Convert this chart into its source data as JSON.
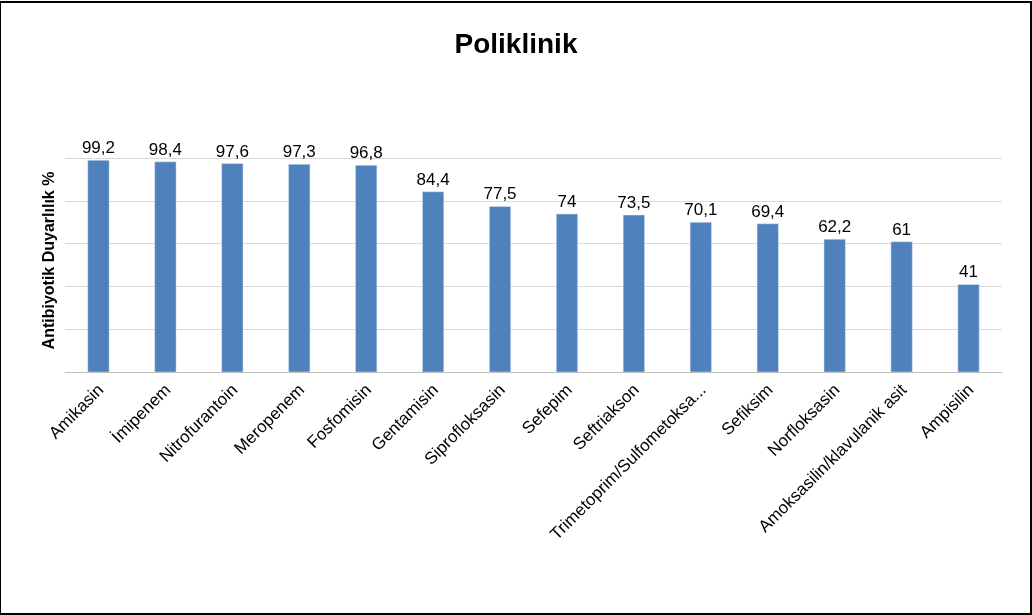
{
  "chart_data": {
    "type": "bar",
    "title": "Poliklinik",
    "ylabel": "Antibiyotik Duyarlılık %",
    "categories": [
      "Amikasin",
      "İmipenem",
      "Nitrofurantoin",
      "Meropenem",
      "Fosfomisin",
      "Gentamisin",
      "Siprofloksasin",
      "Sefepim",
      "Seftriakson",
      "Trimetoprim/Sulfometoksa...",
      "Sefiksim",
      "Norfloksasin",
      "Amoksasilin/klavulanik asit",
      "Ampisilin"
    ],
    "values": [
      99.2,
      98.4,
      97.6,
      97.3,
      96.8,
      84.4,
      77.5,
      74,
      73.5,
      70.1,
      69.4,
      62.2,
      61,
      41
    ],
    "value_labels": [
      "99,2",
      "98,4",
      "97,6",
      "97,3",
      "96,8",
      "84,4",
      "77,5",
      "74",
      "73,5",
      "70,1",
      "69,4",
      "62,2",
      "61",
      "41"
    ],
    "color": "#4f81bd",
    "yticks": [
      {
        "value": 0,
        "label": null
      },
      {
        "value": 20,
        "label": null
      },
      {
        "value": 40,
        "label": null
      },
      {
        "value": 60,
        "label": null
      },
      {
        "value": 80,
        "label": null
      },
      {
        "value": 100,
        "label": null
      }
    ],
    "grid": "y",
    "tick_labels": "x"
  }
}
